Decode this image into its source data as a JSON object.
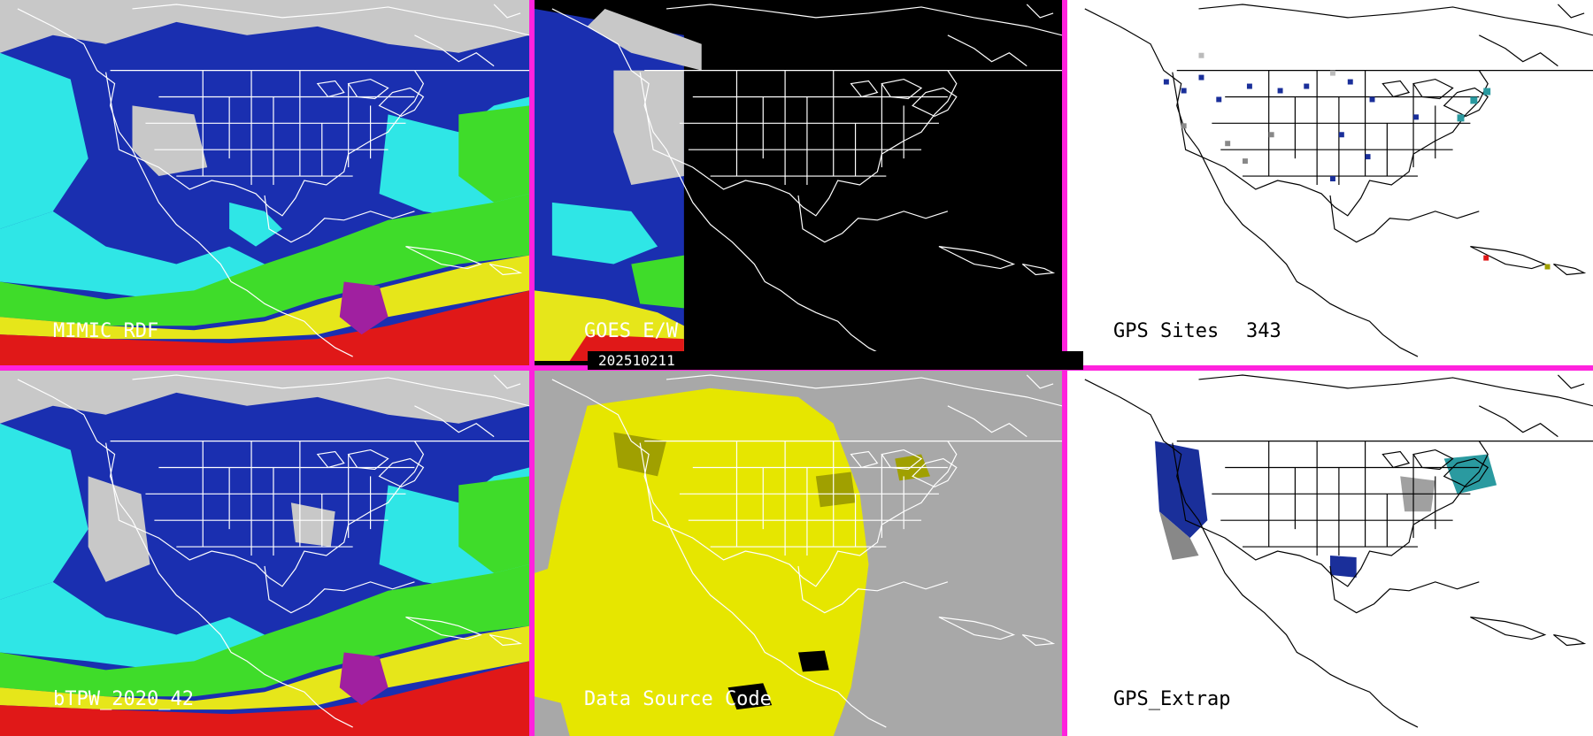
{
  "panels": {
    "mimic_rdf": {
      "label": "MIMIC RDF"
    },
    "goes": {
      "label": "GOES E/W"
    },
    "gps_sites": {
      "label": "GPS Sites",
      "count": "343"
    },
    "btpw": {
      "label": "bTPW_2020_42"
    },
    "data_source": {
      "label": "Data Source Code"
    },
    "gps_extrap": {
      "label": "GPS_Extrap"
    }
  },
  "timestamp": "202510211",
  "colors": {
    "divider": "#ff22dd",
    "tpw_dry": "#c8c8c8",
    "tpw_blue": "#1a2fb0",
    "tpw_cyan": "#2fe6e6",
    "tpw_green": "#3fdc2a",
    "tpw_yellow": "#e6e61a",
    "tpw_red": "#e01818",
    "tpw_purple": "#a020a0",
    "source_yellow": "#e6e600",
    "source_olive": "#a0a000",
    "source_gray": "#a8a8a8"
  }
}
